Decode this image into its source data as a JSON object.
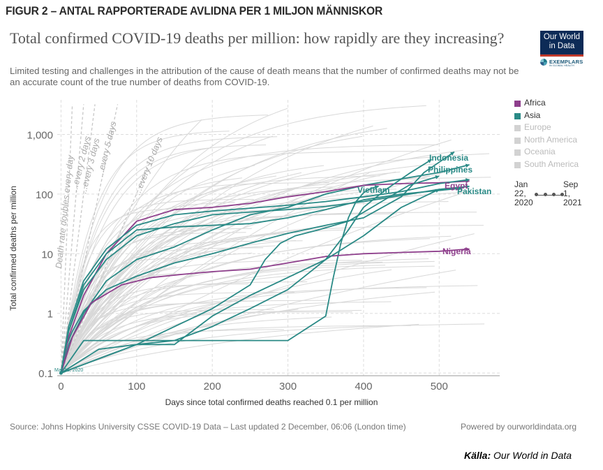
{
  "figure_label": "FIGUR 2 – ANTAL RAPPORTERADE AVLIDNA PER 1 MILJON MÄNNISKOR",
  "header": {
    "title": "Total confirmed COVID-19 deaths per million: how rapidly are they increasing?",
    "subtitle": "Limited testing and challenges in the attribution of the cause of death means that the number of confirmed deaths may not be an accurate count of the true number of deaths from COVID-19.",
    "logo_line1": "Our World",
    "logo_line2": "in Data",
    "exemplars_text": "EXEMPLARS",
    "exemplars_sub": "IN GLOBAL HEALTH"
  },
  "legend": {
    "items": [
      {
        "label": "Africa",
        "color": "#8e3f8c",
        "active": true
      },
      {
        "label": "Asia",
        "color": "#2a8a86",
        "active": true
      },
      {
        "label": "Europe",
        "color": "#d2d2d2",
        "active": false
      },
      {
        "label": "North America",
        "color": "#d2d2d2",
        "active": false
      },
      {
        "label": "Oceania",
        "color": "#d2d2d2",
        "active": false
      },
      {
        "label": "South America",
        "color": "#d2d2d2",
        "active": false
      }
    ],
    "timeline_start": "Jan 22, 2020",
    "timeline_end": "Sep 1, 2021"
  },
  "footer": {
    "source": "Source: Johns Hopkins University CSSE COVID-19 Data – Last updated 2 December, 06:06 (London time)",
    "powered": "Powered by ourworldindata.org",
    "credit_label": "Källa:",
    "credit_value": "Our World in Data"
  },
  "chart_data": {
    "type": "line",
    "xlabel": "Days since total confirmed deaths reached 0.1 per million",
    "ylabel": "Total confirmed deaths per million",
    "y_scale": "log",
    "xlim": [
      -5,
      580
    ],
    "ylim": [
      0.09,
      3800
    ],
    "x_ticks": [
      0,
      100,
      200,
      300,
      400,
      500
    ],
    "x_tick_labels": [
      "0",
      "100",
      "200",
      "300",
      "400",
      "500"
    ],
    "y_ticks": [
      0.1,
      1,
      10,
      100,
      1000
    ],
    "y_tick_labels": [
      "0.1",
      "1",
      "10",
      "100",
      "1,000"
    ],
    "grid": "dashed",
    "annotation": "Mar 16, 2020",
    "doubling_lines": [
      {
        "label": "Death rate doubles every day",
        "days": 1
      },
      {
        "label": "...every 2 days",
        "days": 2
      },
      {
        "label": "...every 3 days",
        "days": 3
      },
      {
        "label": "...every 5 days",
        "days": 5
      },
      {
        "label": "...every 10 days",
        "days": 10
      }
    ],
    "series": [
      {
        "name": "Indonesia",
        "region": "Asia",
        "x": [
          0,
          5,
          15,
          30,
          60,
          100,
          150,
          200,
          250,
          300,
          350,
          400,
          450,
          480,
          520
        ],
        "y": [
          0.1,
          0.25,
          0.5,
          1.1,
          2.5,
          4.2,
          7,
          10,
          15,
          22,
          30,
          40,
          90,
          230,
          510
        ]
      },
      {
        "name": "Philippines",
        "region": "Asia",
        "x": [
          0,
          10,
          30,
          60,
          100,
          150,
          200,
          250,
          300,
          350,
          400,
          450,
          500,
          540
        ],
        "y": [
          0.1,
          0.3,
          1,
          3.5,
          8,
          13,
          25,
          45,
          60,
          100,
          140,
          180,
          230,
          310
        ]
      },
      {
        "name": "Vietnam",
        "region": "Asia",
        "x": [
          0,
          30,
          100,
          150,
          200,
          300,
          350,
          360,
          370,
          380,
          390,
          400,
          410,
          420
        ],
        "y": [
          0.1,
          0.35,
          0.35,
          0.35,
          0.35,
          0.35,
          0.9,
          4,
          15,
          40,
          75,
          105,
          125,
          135
        ]
      },
      {
        "name": "Egypt",
        "region": "Africa",
        "x": [
          0,
          10,
          30,
          60,
          100,
          150,
          200,
          250,
          300,
          350,
          400,
          450,
          500,
          540
        ],
        "y": [
          0.1,
          0.4,
          2,
          10,
          35,
          55,
          60,
          70,
          90,
          110,
          140,
          150,
          155,
          165
        ]
      },
      {
        "name": "Pakistan",
        "region": "Asia",
        "x": [
          0,
          10,
          30,
          60,
          100,
          150,
          200,
          250,
          300,
          350,
          400,
          450,
          500,
          530
        ],
        "y": [
          0.1,
          0.5,
          3,
          10,
          25,
          28,
          30,
          32,
          40,
          55,
          80,
          100,
          115,
          125
        ]
      },
      {
        "name": "Nigeria",
        "region": "Africa",
        "x": [
          0,
          15,
          40,
          80,
          120,
          160,
          200,
          250,
          300,
          350,
          400,
          450,
          500,
          540
        ],
        "y": [
          0.1,
          0.4,
          1.5,
          3,
          4,
          4.5,
          5,
          5.5,
          7,
          9,
          10,
          10.5,
          11,
          12
        ]
      },
      {
        "name": "",
        "region": "Asia",
        "x": [
          0,
          10,
          30,
          60,
          100,
          150,
          200,
          250,
          300,
          350,
          400,
          450,
          500,
          540
        ],
        "y": [
          0.1,
          0.6,
          3.5,
          12,
          30,
          45,
          52,
          58,
          65,
          75,
          90,
          110,
          150,
          175
        ]
      },
      {
        "name": "",
        "region": "Asia",
        "x": [
          0,
          10,
          30,
          60,
          100,
          150,
          200,
          250,
          300,
          350,
          400,
          450,
          500,
          540
        ],
        "y": [
          0.1,
          0.5,
          2.5,
          8,
          20,
          32,
          45,
          50,
          55,
          62,
          75,
          95,
          120,
          135
        ]
      },
      {
        "name": "",
        "region": "Asia",
        "x": [
          0,
          50,
          100,
          150,
          200,
          250,
          300,
          350,
          380,
          400,
          430,
          460,
          490
        ],
        "y": [
          0.1,
          0.25,
          0.3,
          0.35,
          0.6,
          1.2,
          2.5,
          8,
          25,
          60,
          120,
          220,
          380
        ]
      },
      {
        "name": "",
        "region": "Asia",
        "x": [
          0,
          100,
          150,
          200,
          250,
          300,
          350,
          400,
          450,
          500
        ],
        "y": [
          0.1,
          0.3,
          0.3,
          0.9,
          2,
          4,
          8,
          20,
          60,
          120
        ]
      },
      {
        "name": "",
        "region": "Asia",
        "x": [
          0,
          100,
          200,
          250,
          270,
          290,
          310,
          340,
          380,
          420,
          460,
          500
        ],
        "y": [
          0.1,
          0.3,
          1.2,
          3,
          8,
          15,
          20,
          25,
          35,
          70,
          140,
          200
        ]
      }
    ]
  }
}
